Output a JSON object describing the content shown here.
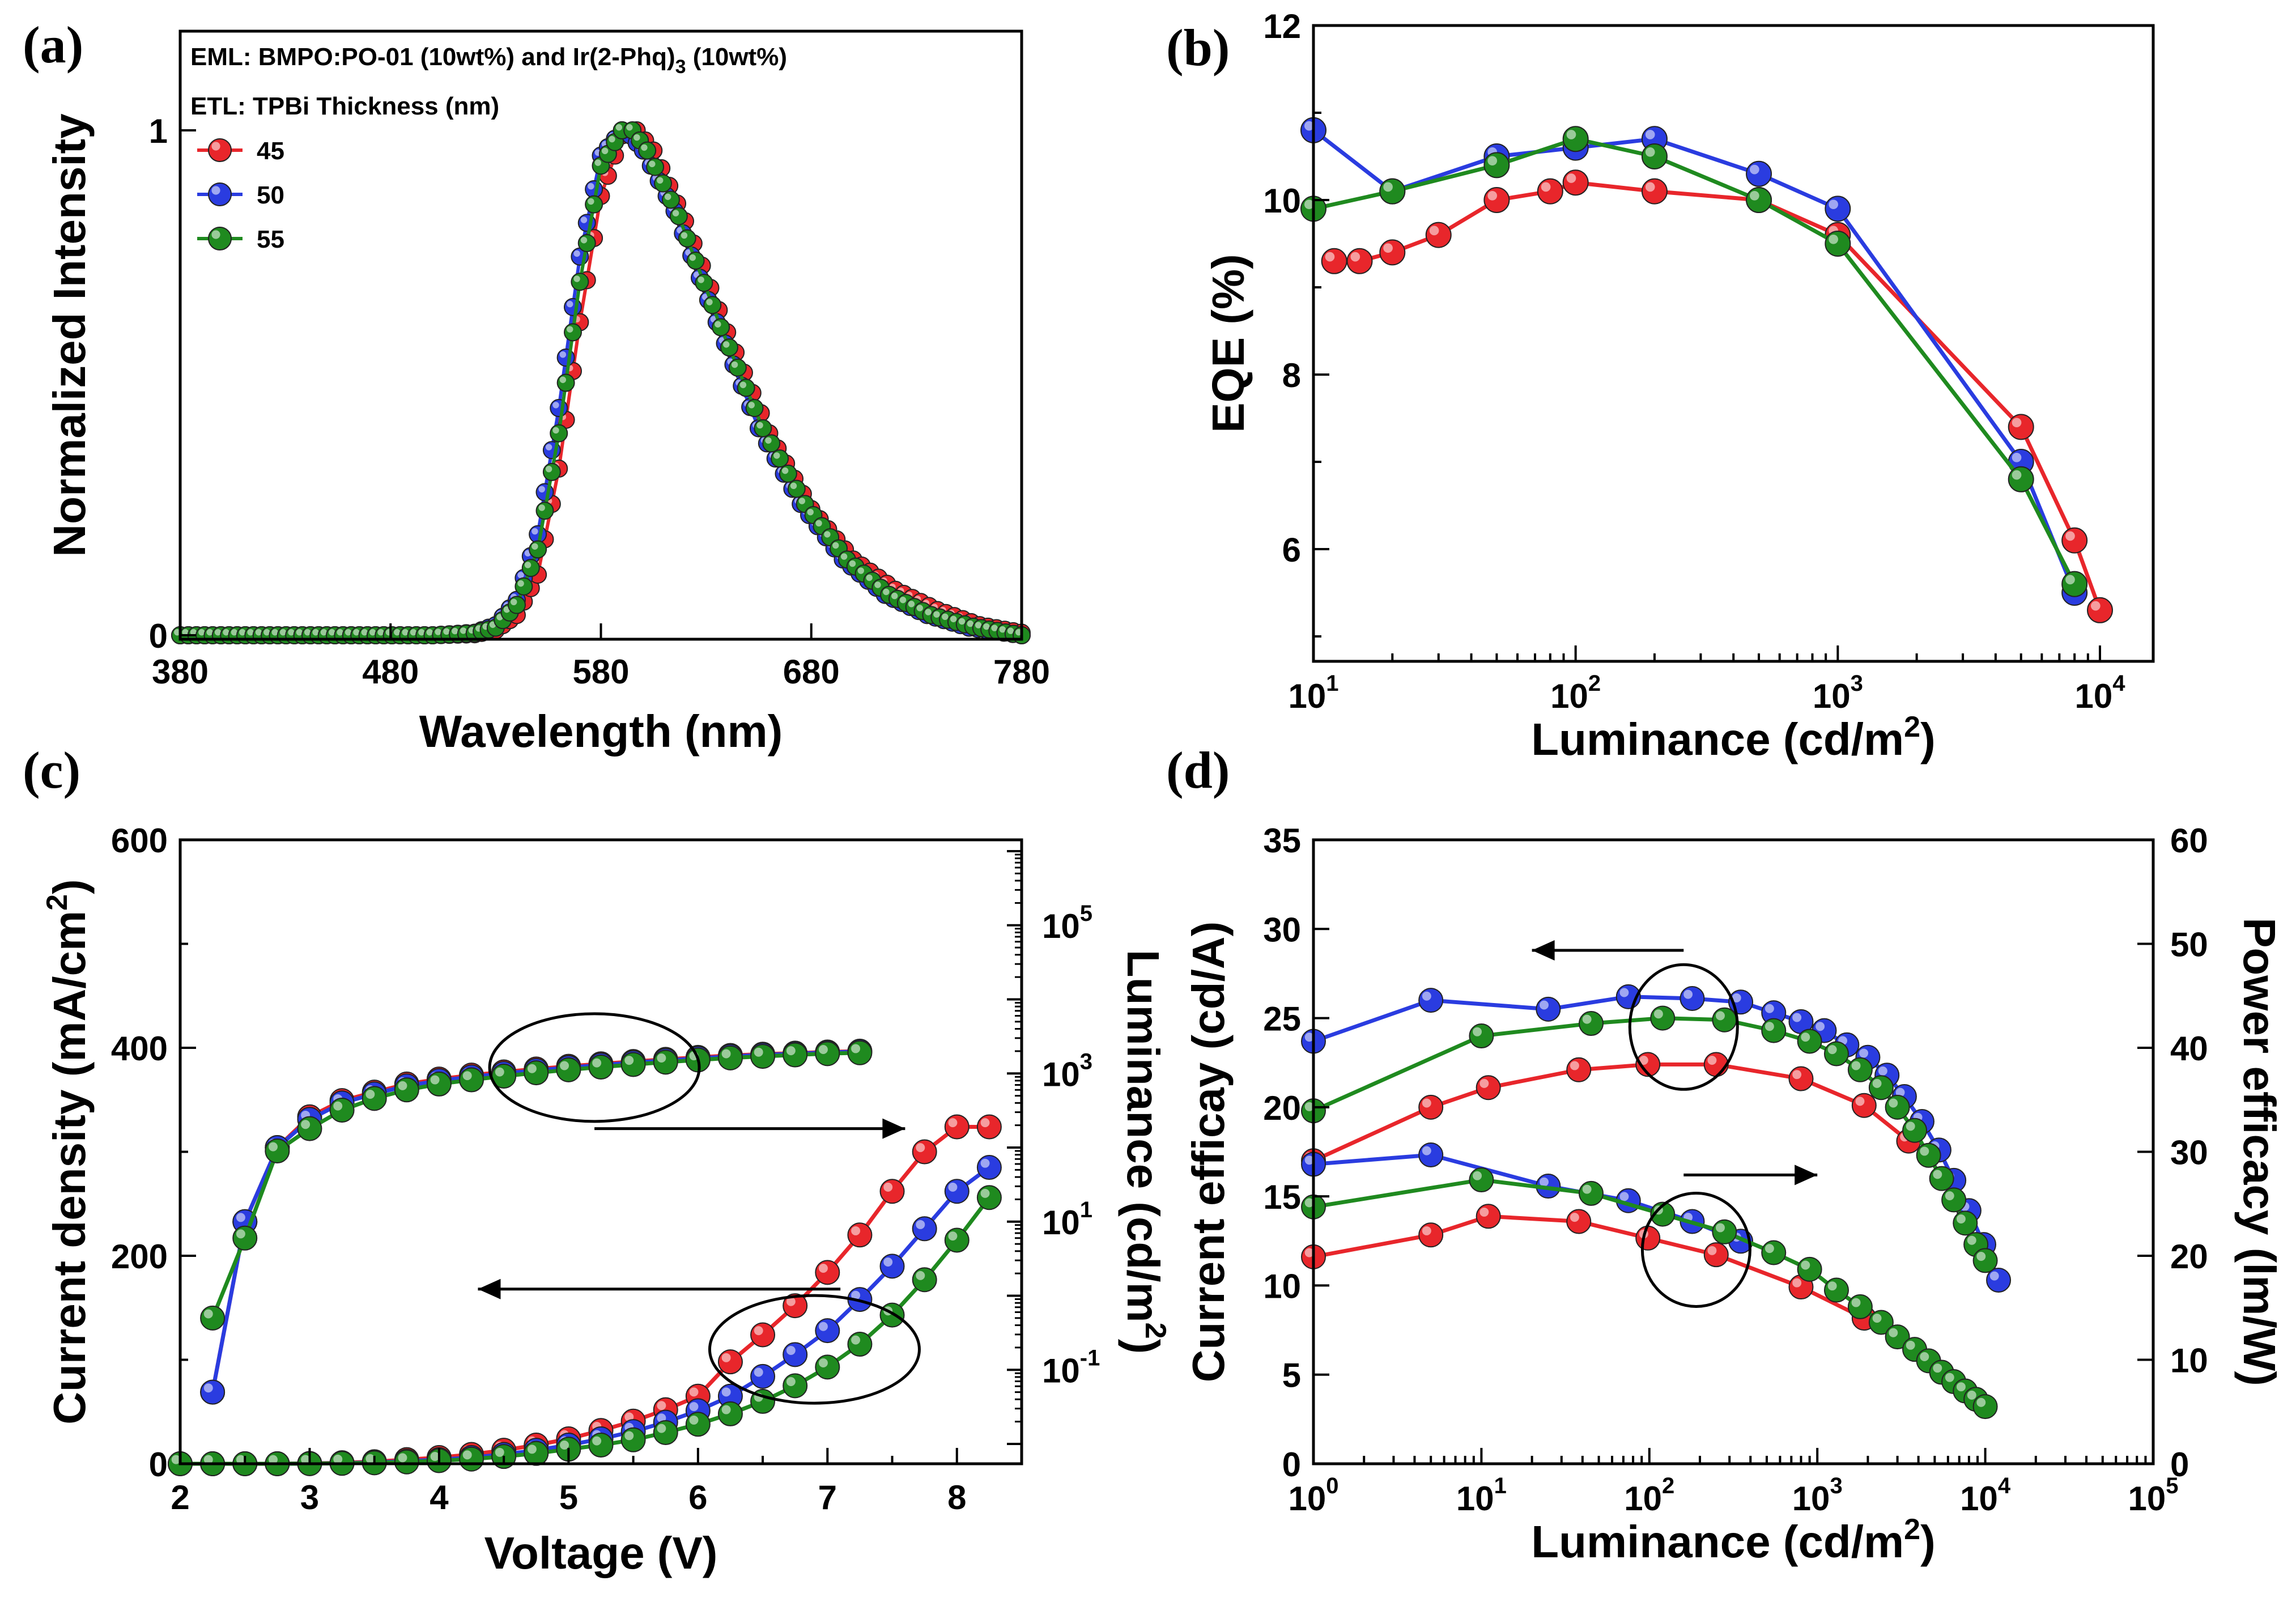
{
  "chart_data": [
    {
      "panel": "(a)",
      "type": "line",
      "xlabel": "Wavelength (nm)",
      "ylabel": "Normalized Intensity",
      "xlim": [
        380,
        780
      ],
      "ylim": [
        0,
        1
      ],
      "xticks": [
        "380",
        "480",
        "580",
        "680",
        "780"
      ],
      "yticks": [
        "0",
        "1"
      ],
      "annotations": [
        {
          "prefix": "EML: BMPO:PO-01 (10wt%) and Ir(2-Phq)",
          "sub": "3",
          "suffix": " (10wt%)"
        },
        {
          "text": "ETL: TPBi Thickness (nm)"
        }
      ],
      "legend": [
        "45",
        "50",
        "55"
      ],
      "series": [
        {
          "name": "45",
          "color": "#e8262b",
          "x": [
            380,
            500,
            520,
            530,
            540,
            550,
            560,
            570,
            580,
            590,
            597,
            605,
            620,
            640,
            660,
            680,
            700,
            720,
            740,
            760,
            780
          ],
          "y": [
            0,
            0,
            0.002,
            0.01,
            0.04,
            0.12,
            0.33,
            0.62,
            0.87,
            0.99,
            1.0,
            0.96,
            0.82,
            0.6,
            0.4,
            0.25,
            0.15,
            0.09,
            0.05,
            0.02,
            0.005
          ]
        },
        {
          "name": "50",
          "color": "#2a3ce0",
          "x": [
            380,
            500,
            520,
            530,
            540,
            550,
            560,
            570,
            580,
            590,
            594,
            600,
            615,
            635,
            655,
            675,
            695,
            715,
            735,
            755,
            780
          ],
          "y": [
            0,
            0,
            0.005,
            0.02,
            0.07,
            0.2,
            0.45,
            0.75,
            0.95,
            1.0,
            0.99,
            0.96,
            0.84,
            0.62,
            0.41,
            0.26,
            0.15,
            0.08,
            0.04,
            0.015,
            0.0
          ]
        },
        {
          "name": "55",
          "color": "#1f8a1f",
          "x": [
            380,
            500,
            520,
            530,
            540,
            550,
            560,
            570,
            580,
            590,
            595,
            602,
            617,
            637,
            657,
            677,
            697,
            717,
            737,
            757,
            780
          ],
          "y": [
            0,
            0,
            0.004,
            0.015,
            0.06,
            0.17,
            0.4,
            0.7,
            0.93,
            1.0,
            1.0,
            0.96,
            0.83,
            0.61,
            0.41,
            0.26,
            0.15,
            0.08,
            0.04,
            0.017,
            0.0
          ]
        }
      ]
    },
    {
      "panel": "(b)",
      "type": "line",
      "xscale": "log",
      "xlabel": "Luminance (cd/m",
      "xlabel_sup": "2",
      "xlabel_end": ")",
      "ylabel": "EQE (%)",
      "xlim": [
        10,
        10000
      ],
      "ylim": [
        5,
        12
      ],
      "xticks": [
        {
          "base": "10",
          "exp": "1"
        },
        {
          "base": "10",
          "exp": "2"
        },
        {
          "base": "10",
          "exp": "3"
        },
        {
          "base": "10",
          "exp": "4"
        }
      ],
      "yticks": [
        "6",
        "8",
        "10",
        "12"
      ],
      "series": [
        {
          "name": "45",
          "color": "#e8262b",
          "x": [
            12,
            15,
            20,
            30,
            50,
            80,
            100,
            200,
            500,
            1000,
            5000,
            8000,
            10000
          ],
          "y": [
            9.3,
            9.3,
            9.4,
            9.6,
            10.0,
            10.1,
            10.2,
            10.1,
            10.0,
            9.6,
            7.4,
            6.1,
            5.3
          ]
        },
        {
          "name": "50",
          "color": "#2a3ce0",
          "x": [
            10,
            20,
            50,
            100,
            200,
            500,
            1000,
            5000,
            8000
          ],
          "y": [
            10.8,
            10.1,
            10.5,
            10.6,
            10.7,
            10.3,
            9.9,
            7.0,
            5.5
          ]
        },
        {
          "name": "55",
          "color": "#1f8a1f",
          "x": [
            10,
            20,
            50,
            100,
            200,
            500,
            1000,
            5000,
            8000
          ],
          "y": [
            9.9,
            10.1,
            10.4,
            10.7,
            10.5,
            10.0,
            9.5,
            6.8,
            5.6
          ]
        }
      ]
    },
    {
      "panel": "(c)",
      "type": "line",
      "xlabel": "Voltage (V)",
      "ylabel": "Current density (mA/cm",
      "ylabel_sup": "2",
      "ylabel_end": ")",
      "y2label": "Luminance (cd/m",
      "y2label_sup": "2",
      "y2label_end": ")",
      "xlim": [
        2,
        8.5
      ],
      "ylim": [
        0,
        600
      ],
      "y2scale": "log",
      "y2lim": [
        0.01,
        1000000
      ],
      "xticks": [
        "2",
        "3",
        "4",
        "5",
        "6",
        "7",
        "8"
      ],
      "yticks": [
        "0",
        "200",
        "400",
        "600"
      ],
      "y2ticks": [
        {
          "base": "10",
          "exp": "-1"
        },
        {
          "base": "10",
          "exp": "1"
        },
        {
          "base": "10",
          "exp": "3"
        },
        {
          "base": "10",
          "exp": "5"
        }
      ],
      "current_series": [
        {
          "name": "45",
          "color": "#e8262b",
          "x": [
            2,
            2.25,
            2.5,
            2.75,
            3,
            3.25,
            3.5,
            3.75,
            4,
            4.25,
            4.5,
            4.75,
            5,
            5.25,
            5.5,
            5.75,
            6,
            6.25,
            6.5,
            6.75,
            7,
            7.25,
            7.5,
            7.75,
            8,
            8.25
          ],
          "y": [
            0,
            0,
            0,
            0,
            0.3,
            1,
            2,
            4,
            6,
            9,
            13,
            18,
            24,
            32,
            41,
            52,
            65,
            98,
            124,
            152,
            184,
            220,
            262,
            300,
            324,
            324
          ]
        },
        {
          "name": "50",
          "color": "#2a3ce0",
          "x": [
            2,
            2.25,
            2.5,
            2.75,
            3,
            3.25,
            3.5,
            3.75,
            4,
            4.25,
            4.5,
            4.75,
            5,
            5.25,
            5.5,
            5.75,
            6,
            6.25,
            6.5,
            6.75,
            7,
            7.25,
            7.5,
            7.75,
            8,
            8.25
          ],
          "y": [
            0,
            0,
            0,
            0,
            0.2,
            0.6,
            1.3,
            2.5,
            4,
            6,
            9,
            13,
            18,
            24,
            31,
            40,
            51,
            65,
            84,
            105,
            128,
            158,
            190,
            226,
            262,
            285
          ]
        },
        {
          "name": "55",
          "color": "#1f8a1f",
          "x": [
            2,
            2.25,
            2.5,
            2.75,
            3,
            3.25,
            3.5,
            3.75,
            4,
            4.25,
            4.5,
            4.75,
            5,
            5.25,
            5.5,
            5.75,
            6,
            6.25,
            6.5,
            6.75,
            7,
            7.25,
            7.5,
            7.75,
            8,
            8.25
          ],
          "y": [
            0,
            0,
            0,
            0,
            0.1,
            0.4,
            0.9,
            1.8,
            3,
            4.5,
            7,
            10,
            14,
            18,
            23,
            30,
            38,
            48,
            60,
            75,
            93,
            115,
            143,
            177,
            215,
            256
          ]
        }
      ],
      "luminance_series": [
        {
          "name": "45",
          "color": "#e8262b",
          "x": [
            2.25,
            2.5,
            2.75,
            3,
            3.25,
            3.5,
            3.75,
            4,
            4.25,
            4.5,
            4.75,
            5,
            5.25,
            5.5,
            5.75,
            6,
            6.25,
            6.5,
            6.75,
            7,
            7.25
          ],
          "y": [
            0.05,
            10,
            100,
            260,
            430,
            560,
            720,
            840,
            950,
            1050,
            1150,
            1250,
            1350,
            1450,
            1550,
            1650,
            1750,
            1820,
            1880,
            1950,
            2000
          ]
        },
        {
          "name": "50",
          "color": "#2a3ce0",
          "x": [
            2.25,
            2.5,
            2.75,
            3,
            3.25,
            3.5,
            3.75,
            4,
            4.25,
            4.5,
            4.75,
            5,
            5.25,
            5.5,
            5.75,
            6,
            6.25,
            6.5,
            6.75,
            7,
            7.25
          ],
          "y": [
            0.05,
            10,
            100,
            240,
            400,
            530,
            680,
            800,
            900,
            1000,
            1100,
            1200,
            1300,
            1400,
            1500,
            1600,
            1700,
            1780,
            1850,
            1920,
            1980
          ]
        },
        {
          "name": "55",
          "color": "#1f8a1f",
          "x": [
            2.25,
            2.5,
            2.75,
            3,
            3.25,
            3.5,
            3.75,
            4,
            4.25,
            4.5,
            4.75,
            5,
            5.25,
            5.5,
            5.75,
            6,
            6.25,
            6.5,
            6.75,
            7,
            7.25
          ],
          "y": [
            0.5,
            6,
            90,
            180,
            320,
            460,
            600,
            720,
            820,
            920,
            1020,
            1120,
            1220,
            1320,
            1420,
            1520,
            1620,
            1700,
            1780,
            1850,
            1900
          ]
        }
      ]
    },
    {
      "panel": "(d)",
      "type": "line",
      "xscale": "log",
      "xlabel": "Luminance (cd/m",
      "xlabel_sup": "2",
      "xlabel_end": ")",
      "ylabel": "Current efficay (cd/A)",
      "y2label": "Power efficacy (lm/W)",
      "xlim": [
        1,
        100000
      ],
      "ylim": [
        0,
        35
      ],
      "y2lim": [
        0,
        60
      ],
      "xticks": [
        {
          "base": "10",
          "exp": "0"
        },
        {
          "base": "10",
          "exp": "1"
        },
        {
          "base": "10",
          "exp": "2"
        },
        {
          "base": "10",
          "exp": "3"
        },
        {
          "base": "10",
          "exp": "4"
        },
        {
          "base": "10",
          "exp": "5"
        }
      ],
      "yticks": [
        "0",
        "5",
        "10",
        "15",
        "20",
        "25",
        "30",
        "35"
      ],
      "y2ticks": [
        "0",
        "10",
        "20",
        "30",
        "40",
        "50",
        "60"
      ],
      "current_efficiency_series": [
        {
          "name": "45",
          "color": "#e8262b",
          "x": [
            1,
            5,
            11,
            38,
            98,
            250,
            800,
            1900,
            3500
          ],
          "y": [
            17.0,
            20.0,
            21.1,
            22.1,
            22.4,
            22.4,
            21.6,
            20.1,
            18.1
          ]
        },
        {
          "name": "50",
          "color": "#2a3ce0",
          "x": [
            1,
            5,
            25,
            75,
            180,
            350,
            550,
            800,
            1100,
            1500,
            2000,
            2600,
            3300,
            4200,
            5300,
            6500,
            8000,
            9800,
            12000
          ],
          "y": [
            23.7,
            26.0,
            25.5,
            26.2,
            26.1,
            25.9,
            25.3,
            24.8,
            24.3,
            23.5,
            22.8,
            21.8,
            20.6,
            19.2,
            17.6,
            15.9,
            14.2,
            12.3,
            10.3
          ]
        },
        {
          "name": "55",
          "color": "#1f8a1f",
          "x": [
            1,
            10,
            45,
            120,
            280,
            550,
            900,
            1300,
            1800,
            2400,
            3000,
            3800,
            4600,
            5500,
            6500,
            7600,
            8800,
            10000
          ],
          "y": [
            19.8,
            24.0,
            24.7,
            25.0,
            24.9,
            24.3,
            23.7,
            23.0,
            22.1,
            21.1,
            20.0,
            18.7,
            17.3,
            16.0,
            14.8,
            13.5,
            12.3,
            11.4
          ]
        }
      ],
      "power_efficiency_series": [
        {
          "name": "45",
          "color": "#e8262b",
          "x": [
            1,
            5,
            11,
            38,
            98,
            250,
            800,
            1900
          ],
          "y": [
            19.9,
            22.0,
            23.8,
            23.3,
            21.7,
            20.1,
            17.0,
            14.0
          ]
        },
        {
          "name": "50",
          "color": "#2a3ce0",
          "x": [
            1,
            5,
            25,
            75,
            180,
            350
          ],
          "y": [
            28.8,
            29.7,
            26.7,
            25.3,
            23.3,
            21.4
          ]
        },
        {
          "name": "55",
          "color": "#1f8a1f",
          "x": [
            1,
            10,
            45,
            120,
            280,
            550,
            900,
            1300,
            1800,
            2400,
            3000,
            3800,
            4600,
            5500,
            6500,
            7600,
            8800,
            10000
          ],
          "y": [
            24.7,
            27.3,
            26.0,
            24.0,
            22.3,
            20.3,
            18.7,
            16.7,
            15.1,
            13.6,
            12.2,
            11.0,
            9.9,
            8.8,
            7.9,
            7.0,
            6.2,
            5.5
          ]
        }
      ]
    }
  ]
}
